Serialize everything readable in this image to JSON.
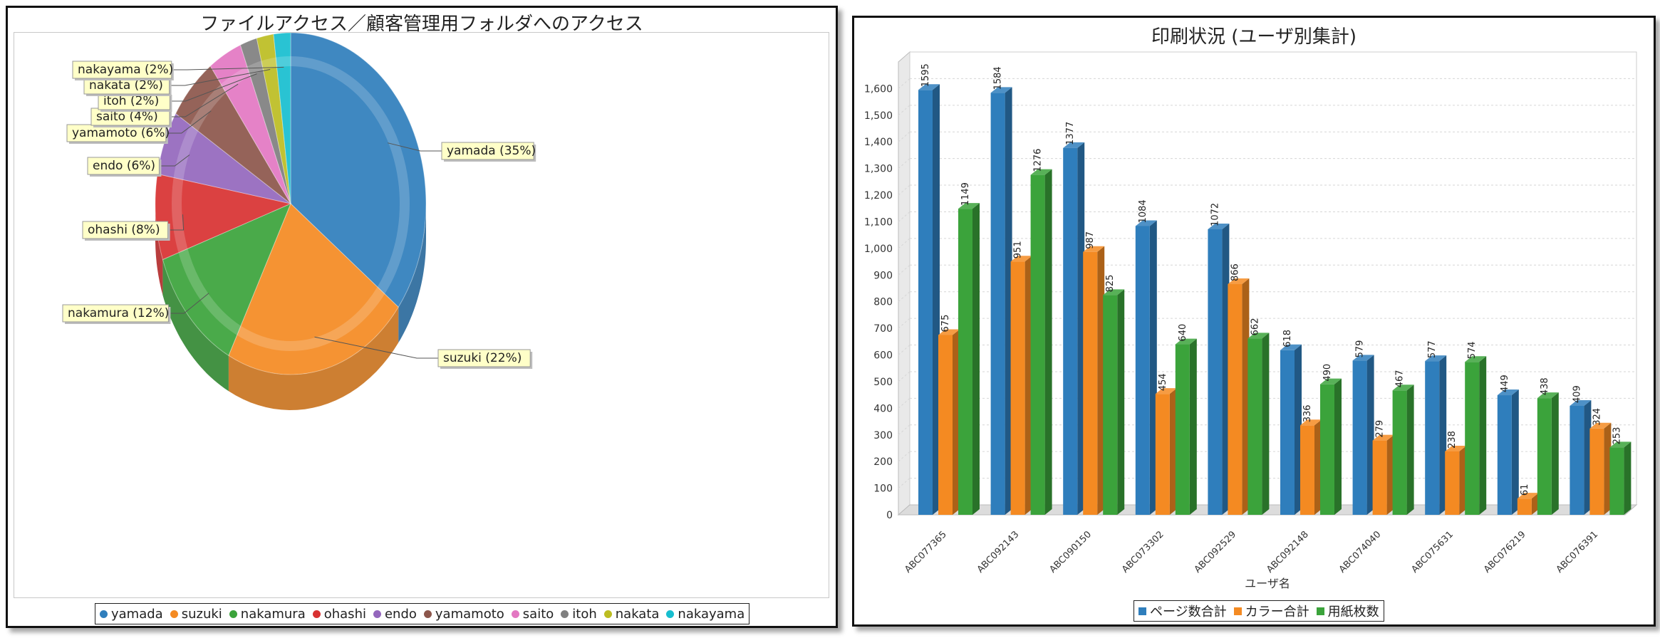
{
  "pie_chart": {
    "title": "ファイルアクセス／顧客管理用フォルダへのアクセス",
    "colors": {
      "yamada": "#2f7ebc",
      "suzuki": "#f48a22",
      "nakamura": "#3ba33b",
      "ohashi": "#d83131",
      "endo": "#9467bd",
      "yamamoto": "#8c564b",
      "saito": "#e377c2",
      "itoh": "#7f7f7f",
      "nakata": "#bcbd22",
      "nakayama": "#17becf"
    }
  },
  "bar_chart": {
    "title": "印刷状況 (ユーザ別集計)",
    "colors": {
      "page": "#2f7ebc",
      "color": "#f48a22",
      "paper": "#3ba33b"
    }
  },
  "chart_data": [
    {
      "type": "pie",
      "title": "ファイルアクセス／顧客管理用フォルダへのアクセス",
      "slices": [
        {
          "name": "yamada",
          "value": 35,
          "label": "yamada (35%)"
        },
        {
          "name": "suzuki",
          "value": 22,
          "label": "suzuki (22%)"
        },
        {
          "name": "nakamura",
          "value": 12,
          "label": "nakamura (12%)"
        },
        {
          "name": "ohashi",
          "value": 8,
          "label": "ohashi (8%)"
        },
        {
          "name": "endo",
          "value": 6,
          "label": "endo (6%)"
        },
        {
          "name": "yamamoto",
          "value": 6,
          "label": "yamamoto (6%)"
        },
        {
          "name": "saito",
          "value": 4,
          "label": "saito (4%)"
        },
        {
          "name": "itoh",
          "value": 2,
          "label": "itoh (2%)"
        },
        {
          "name": "nakata",
          "value": 2,
          "label": "nakata (2%)"
        },
        {
          "name": "nakayama",
          "value": 2,
          "label": "nakayama (2%)"
        }
      ],
      "legend_position": "bottom"
    },
    {
      "type": "bar",
      "title": "印刷状況 (ユーザ別集計)",
      "xlabel": "ユーザ名",
      "ylabel": "",
      "ylim": [
        0,
        1700
      ],
      "yticks": [
        0,
        100,
        200,
        300,
        400,
        500,
        600,
        700,
        800,
        900,
        1000,
        1100,
        1200,
        1300,
        1400,
        1500,
        1600
      ],
      "ytick_labels": [
        "0",
        "100",
        "200",
        "300",
        "400",
        "500",
        "600",
        "700",
        "800",
        "900",
        "1,000",
        "1,100",
        "1,200",
        "1,300",
        "1,400",
        "1,500",
        "1,600"
      ],
      "categories": [
        "ABC077365",
        "ABC092143",
        "ABC090150",
        "ABC073302",
        "ABC092529",
        "ABC092148",
        "ABC074040",
        "ABC075631",
        "ABC076219",
        "ABC076391"
      ],
      "series": [
        {
          "name": "ページ数合計",
          "values": [
            1595,
            1584,
            1377,
            1084,
            1072,
            618,
            579,
            577,
            449,
            409
          ]
        },
        {
          "name": "カラー合計",
          "values": [
            675,
            951,
            987,
            454,
            866,
            336,
            279,
            238,
            61,
            324
          ]
        },
        {
          "name": "用紙枚数",
          "values": [
            1149,
            1276,
            825,
            640,
            662,
            490,
            467,
            574,
            438,
            253
          ]
        }
      ],
      "grid": true,
      "legend_position": "bottom"
    }
  ]
}
